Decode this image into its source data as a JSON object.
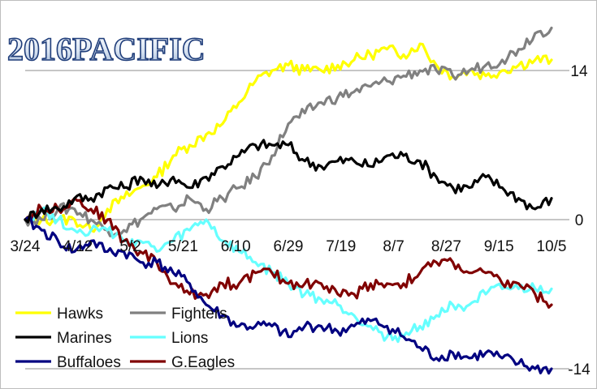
{
  "chart_data": {
    "type": "line",
    "title": "2016PACIFIC",
    "xlabel": "",
    "ylabel": "",
    "x_tick_labels": [
      "3/24",
      "4/12",
      "5/2",
      "5/21",
      "6/10",
      "6/29",
      "7/19",
      "8/7",
      "8/27",
      "9/15",
      "10/5"
    ],
    "y_tick_values": [
      14,
      0,
      -14
    ],
    "y_tick_labels": [
      "14",
      "0",
      "-14"
    ],
    "ylim": [
      -14,
      19
    ],
    "grid": "horizontal-lines-at-ticks",
    "legend": "bottom-left",
    "series": [
      {
        "name": "Hawks",
        "color": "#ffff00",
        "values": [
          0,
          0,
          0,
          0,
          -1,
          1,
          2,
          3,
          4,
          6,
          7,
          8,
          9,
          11,
          13,
          14,
          14.5,
          14,
          14,
          14.5,
          15,
          15.5,
          16,
          15.5,
          16.5,
          14.5,
          13.5,
          14,
          13.5,
          14,
          14.5,
          15,
          15
        ]
      },
      {
        "name": "Fighters",
        "color": "#808080",
        "values": [
          0,
          0,
          1,
          1,
          0,
          -1,
          -1,
          0,
          1,
          1,
          2,
          1,
          2,
          3,
          4,
          6,
          9,
          10,
          11,
          11.5,
          12,
          12.5,
          13,
          13.5,
          14,
          14,
          13.5,
          14,
          14.5,
          15,
          16,
          17.5,
          18
        ]
      },
      {
        "name": "Marines",
        "color": "#000000",
        "values": [
          0,
          1,
          1,
          2,
          2,
          3,
          3,
          4,
          3,
          4,
          3,
          4,
          5,
          6,
          7,
          7,
          7,
          5.5,
          5,
          5.5,
          5.5,
          5,
          6,
          6,
          5.5,
          4,
          3,
          3,
          4,
          3,
          2,
          1,
          2
        ]
      },
      {
        "name": "Lions",
        "color": "#66ffff",
        "values": [
          0,
          1,
          0,
          -1,
          -1,
          -1,
          -2,
          -2,
          -3,
          -2,
          -1,
          0,
          -2,
          -3,
          -4,
          -5,
          -6,
          -7,
          -7.5,
          -8,
          -9,
          -10,
          -11,
          -11,
          -10,
          -9,
          -8,
          -8,
          -7,
          -6.5,
          -6.5,
          -6.5,
          -6.5
        ]
      },
      {
        "name": "Buffaloes",
        "color": "#000080",
        "values": [
          0,
          -1,
          -2,
          -3,
          -2,
          -3,
          -3,
          -4,
          -4,
          -5,
          -6,
          -8,
          -9,
          -10,
          -10,
          -10,
          -11,
          -10,
          -10,
          -10.5,
          -10,
          -9.5,
          -10,
          -11,
          -12,
          -13,
          -12.5,
          -13,
          -12.5,
          -13,
          -13.5,
          -14,
          -14
        ]
      },
      {
        "name": "G.Eagles",
        "color": "#800000",
        "values": [
          0,
          1,
          1,
          2,
          1,
          0,
          -2,
          -3,
          -4,
          -6,
          -7,
          -7,
          -6,
          -6,
          -5,
          -5,
          -6,
          -6,
          -6,
          -7,
          -7,
          -6,
          -6,
          -6,
          -5,
          -4,
          -4,
          -5,
          -5,
          -6,
          -6,
          -7,
          -8
        ]
      }
    ]
  }
}
